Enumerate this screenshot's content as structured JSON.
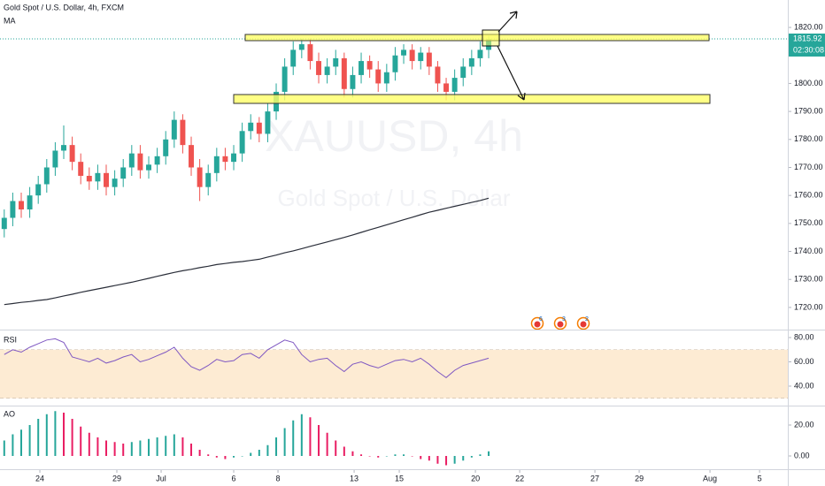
{
  "chart_data": [
    {
      "type": "candlestick",
      "title": "Gold Spot / U.S. Dollar, 4h, FXCM",
      "watermark": {
        "symbol": "XAUUSD, 4h",
        "description": "Gold Spot / U.S. Dollar"
      },
      "up_color": "#26a69a",
      "down_color": "#ef5350",
      "open": [
        1748,
        1752,
        1758,
        1755,
        1760,
        1764,
        1770,
        1776,
        1778,
        1772,
        1767,
        1765,
        1768,
        1763,
        1766,
        1770,
        1775,
        1769,
        1771,
        1774,
        1780,
        1787,
        1778,
        1770,
        1763,
        1768,
        1774,
        1772,
        1775,
        1783,
        1786,
        1782,
        1790,
        1797,
        1806,
        1812,
        1814,
        1808,
        1803,
        1806,
        1809,
        1798,
        1803,
        1808,
        1805,
        1800,
        1804,
        1810,
        1812,
        1808,
        1811,
        1806,
        1800,
        1797,
        1802,
        1806,
        1809,
        1812
      ],
      "high": [
        1755,
        1761,
        1761,
        1763,
        1767,
        1773,
        1779,
        1785,
        1781,
        1775,
        1770,
        1771,
        1771,
        1769,
        1773,
        1778,
        1778,
        1774,
        1777,
        1783,
        1790,
        1789,
        1781,
        1773,
        1771,
        1777,
        1777,
        1778,
        1786,
        1789,
        1788,
        1793,
        1800,
        1809,
        1815,
        1816,
        1816,
        1811,
        1809,
        1812,
        1811,
        1806,
        1811,
        1810,
        1808,
        1807,
        1813,
        1814,
        1814,
        1813,
        1813,
        1808,
        1802,
        1805,
        1809,
        1812,
        1815,
        1817
      ],
      "low": [
        1745,
        1749,
        1752,
        1752,
        1757,
        1761,
        1767,
        1773,
        1769,
        1764,
        1762,
        1762,
        1760,
        1760,
        1763,
        1767,
        1766,
        1766,
        1768,
        1771,
        1777,
        1775,
        1767,
        1758,
        1760,
        1765,
        1769,
        1769,
        1772,
        1780,
        1779,
        1779,
        1787,
        1794,
        1803,
        1809,
        1805,
        1800,
        1800,
        1803,
        1795,
        1795,
        1800,
        1802,
        1797,
        1797,
        1801,
        1807,
        1805,
        1805,
        1803,
        1797,
        1794,
        1794,
        1799,
        1803,
        1806,
        1809
      ],
      "close": [
        1752,
        1758,
        1755,
        1760,
        1764,
        1770,
        1776,
        1778,
        1772,
        1767,
        1765,
        1768,
        1763,
        1766,
        1770,
        1775,
        1769,
        1771,
        1774,
        1780,
        1787,
        1778,
        1770,
        1763,
        1768,
        1774,
        1772,
        1775,
        1783,
        1786,
        1782,
        1790,
        1797,
        1806,
        1812,
        1814,
        1808,
        1803,
        1806,
        1809,
        1798,
        1803,
        1808,
        1805,
        1800,
        1804,
        1810,
        1812,
        1808,
        1811,
        1806,
        1800,
        1797,
        1802,
        1806,
        1809,
        1812,
        1815.92
      ],
      "ma": {
        "name": "MA",
        "color": "#2a2e39",
        "values": [
          1721,
          1721.4,
          1721.8,
          1722.1,
          1722.5,
          1722.8,
          1723.4,
          1724.1,
          1724.7,
          1725.4,
          1726,
          1726.6,
          1727.2,
          1727.8,
          1728.4,
          1729,
          1729.7,
          1730.4,
          1731.1,
          1731.8,
          1732.5,
          1733.1,
          1733.6,
          1734.2,
          1734.7,
          1735.3,
          1735.7,
          1736.1,
          1736.4,
          1736.8,
          1737.2,
          1738,
          1738.7,
          1739.5,
          1740.2,
          1741,
          1741.8,
          1742.6,
          1743.4,
          1744.2,
          1745,
          1745.9,
          1746.8,
          1747.7,
          1748.6,
          1749.5,
          1750.4,
          1751.3,
          1752.2,
          1753.1,
          1754,
          1754.7,
          1755.4,
          1756.1,
          1756.8,
          1757.5,
          1758.2,
          1759
        ]
      },
      "last_price": 1815.92,
      "countdown": "02:30:08",
      "last_price_color": "#26a69a",
      "events": [
        "6",
        "3",
        "2"
      ],
      "ylim": [
        1712.4,
        1829.8
      ],
      "yticks": [
        {
          "value": 1720,
          "label": "1720.00"
        },
        {
          "value": 1730,
          "label": "1730.00"
        },
        {
          "value": 1740,
          "label": "1740.00"
        },
        {
          "value": 1750,
          "label": "1750.00"
        },
        {
          "value": 1760,
          "label": "1760.00"
        },
        {
          "value": 1770,
          "label": "1770.00"
        },
        {
          "value": 1780,
          "label": "1780.00"
        },
        {
          "value": 1790,
          "label": "1790.00"
        },
        {
          "value": 1800,
          "label": "1800.00"
        },
        {
          "value": 1820,
          "label": "1820.00"
        }
      ],
      "grid": false
    },
    {
      "type": "line",
      "title": "RSI",
      "color": "#7e57c2",
      "values": [
        66,
        70,
        68,
        72,
        75,
        78,
        79,
        76,
        64,
        62,
        60,
        63,
        59,
        61,
        64,
        66,
        60,
        62,
        65,
        68,
        72,
        63,
        56,
        53,
        57,
        62,
        60,
        61,
        66,
        67,
        63,
        70,
        74,
        78,
        76,
        66,
        60,
        62,
        63,
        57,
        52,
        58,
        60,
        57,
        55,
        58,
        61,
        62,
        60,
        63,
        58,
        52,
        47,
        53,
        57,
        59,
        61,
        63
      ],
      "band": [
        30,
        70
      ],
      "band_color": "#fdebd3",
      "ylim": [
        24.7,
        85.1
      ],
      "yticks": [
        {
          "value": 80,
          "label": "80.00"
        },
        {
          "value": 60,
          "label": "60.00"
        },
        {
          "value": 40,
          "label": "40.00"
        }
      ],
      "grid": false
    },
    {
      "type": "bar",
      "title": "AO",
      "up_color": "#26a69a",
      "down_color": "#e91e63",
      "values": [
        10,
        14,
        17,
        20,
        24,
        27,
        29,
        28,
        24,
        19,
        15,
        12,
        10,
        9,
        8,
        9,
        10,
        11,
        12,
        13,
        14,
        12,
        8,
        4,
        1,
        -1,
        -2,
        -1,
        0,
        2,
        4,
        7,
        12,
        18,
        23,
        27,
        25,
        20,
        15,
        10,
        6,
        3,
        1,
        0,
        -1,
        0,
        1,
        1,
        0,
        -2,
        -3,
        -5,
        -6,
        -5,
        -3,
        -1,
        1,
        3
      ],
      "ylim": [
        -8,
        32
      ],
      "yticks": [
        {
          "value": 20,
          "label": "20.00"
        },
        {
          "value": 0,
          "label": "0.00"
        }
      ],
      "xlim": [
        -0.5,
        92.2
      ],
      "xticks": [
        {
          "value": 4.19,
          "label": "24"
        },
        {
          "value": 13.25,
          "label": "29"
        },
        {
          "value": 18.46,
          "label": "Jul"
        },
        {
          "value": 27,
          "label": "6"
        },
        {
          "value": 32.21,
          "label": "8"
        },
        {
          "value": 41.17,
          "label": "13"
        },
        {
          "value": 46.48,
          "label": "15"
        },
        {
          "value": 55.44,
          "label": "20"
        },
        {
          "value": 60.65,
          "label": "22"
        },
        {
          "value": 69.5,
          "label": "27"
        },
        {
          "value": 74.71,
          "label": "29"
        },
        {
          "value": 83.04,
          "label": "Aug"
        },
        {
          "value": 88.88,
          "label": "5"
        }
      ],
      "grid": false
    }
  ]
}
